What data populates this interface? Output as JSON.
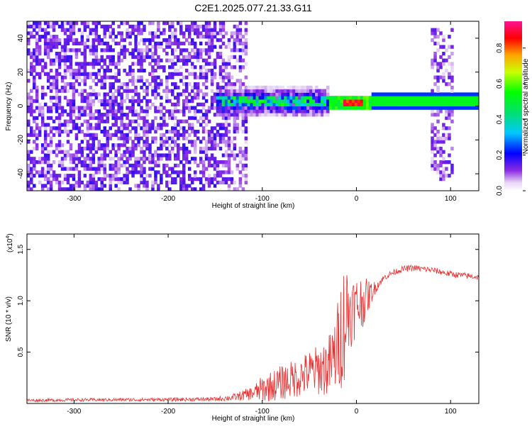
{
  "title": "C2E1.2025.077.21.33.G11",
  "chart_data": [
    {
      "type": "heatmap",
      "xlabel": "Height of straight line (km)",
      "ylabel": "Frequency (Hz)",
      "xlim": [
        -350,
        130
      ],
      "ylim": [
        -50,
        50
      ],
      "x_ticks": [
        -300,
        -200,
        -100,
        0,
        100
      ],
      "y_ticks": [
        -40,
        -20,
        0,
        20,
        40
      ],
      "colorbar": {
        "label": "Normalized spectral amplitude",
        "range": [
          0,
          0.95
        ],
        "ticks": [
          0.0,
          0.2,
          0.4,
          0.6,
          0.8
        ]
      },
      "features": {
        "noise_region_x": [
          -350,
          -118
        ],
        "carrier_region_x": [
          -150,
          130
        ],
        "carrier_frequency_hz": 1.5,
        "peak_amplitude_x": [
          -15,
          5
        ],
        "secondary_noise_x": [
          78,
          100
        ]
      }
    },
    {
      "type": "line",
      "xlabel": "Height of straight line (km)",
      "ylabel": "SNR (10 * v/v)",
      "y_multiplier_label": "(x10",
      "y_multiplier_exp": "4",
      "xlim": [
        -350,
        130
      ],
      "ylim": [
        0,
        16500
      ],
      "x_ticks": [
        -300,
        -200,
        -100,
        0,
        100
      ],
      "y_ticks": [
        5000,
        10000,
        15000
      ],
      "y_tick_labels": [
        "0.5",
        "1.0",
        "1.5"
      ],
      "color": "#e83030",
      "envelope": {
        "x": [
          -350,
          -300,
          -200,
          -150,
          -130,
          -110,
          -100,
          -90,
          -80,
          -70,
          -60,
          -50,
          -40,
          -30,
          -25,
          -20,
          -15,
          -12,
          -10,
          -8,
          -5,
          0,
          5,
          10,
          15,
          20,
          25,
          30,
          40,
          50,
          60,
          70,
          80,
          90,
          100,
          110,
          120,
          130
        ],
        "mean": [
          300,
          350,
          380,
          420,
          600,
          1000,
          1400,
          1700,
          2000,
          2300,
          2600,
          3000,
          3300,
          3600,
          4200,
          5500,
          7500,
          8200,
          8800,
          9000,
          9200,
          9500,
          9800,
          10200,
          10700,
          11300,
          11800,
          12300,
          12800,
          13100,
          13200,
          13100,
          13000,
          12800,
          12600,
          12500,
          12400,
          12300
        ],
        "amp": [
          150,
          150,
          170,
          200,
          350,
          700,
          1300,
          1500,
          1700,
          1800,
          2000,
          2200,
          2500,
          3000,
          3500,
          4500,
          6000,
          6000,
          5500,
          4500,
          3500,
          3000,
          2800,
          2000,
          1200,
          600,
          400,
          300,
          300,
          300,
          300,
          300,
          300,
          300,
          300,
          300,
          300,
          300
        ]
      }
    }
  ]
}
